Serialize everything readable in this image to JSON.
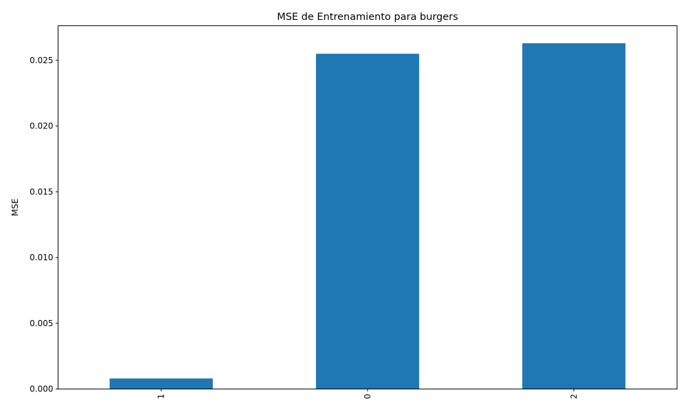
{
  "chart_data": {
    "type": "bar",
    "title": "MSE de Entrenamiento para burgers",
    "xlabel": "",
    "ylabel": "MSE",
    "categories": [
      "1",
      "0",
      "2"
    ],
    "values": [
      0.0008,
      0.0255,
      0.0263
    ],
    "ylim": [
      0,
      0.02763
    ],
    "yticks": [
      "0.000",
      "0.005",
      "0.010",
      "0.015",
      "0.020",
      "0.025"
    ],
    "bar_color": "#1f77b4",
    "grid": false
  }
}
